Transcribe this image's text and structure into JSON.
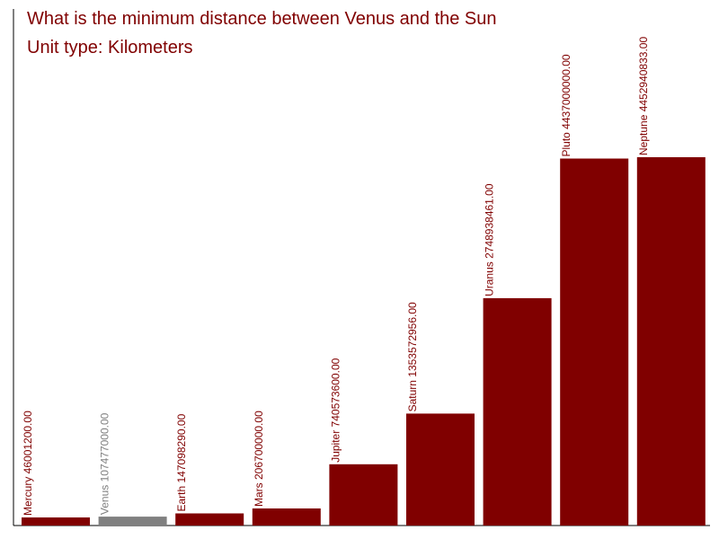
{
  "title": "What is the minimum distance between Venus and the Sun",
  "subtitle": "Unit type: Kilometers",
  "colors": {
    "default_bar": "#800000",
    "highlight_bar": "#808080",
    "axis": "#000000"
  },
  "chart_data": {
    "type": "bar",
    "categories": [
      "Mercury",
      "Venus",
      "Earth",
      "Mars",
      "Jupiter",
      "Saturn",
      "Uranus",
      "Pluto",
      "Neptune"
    ],
    "values": [
      46001200.0,
      107477000.0,
      147098290.0,
      206700000.0,
      740573600.0,
      1353572956.0,
      2748938461.0,
      4437000000.0,
      4452940833.0
    ],
    "data_labels": [
      "Mercury 46001200.00",
      "Venus 107477000.00",
      "Earth 147098290.00",
      "Mars 206700000.00",
      "Jupiter 740573600.00",
      "Saturn 1353572956.00",
      "Uranus 2748938461.00",
      "Pluto 4437000000.00",
      "Neptune 4452940833.00"
    ],
    "highlight": "Venus",
    "title": "What is the minimum distance between Venus and the Sun",
    "xlabel": "",
    "ylabel": "",
    "ylim": [
      0,
      4452940833.0
    ],
    "grid": false,
    "legend": "none"
  }
}
